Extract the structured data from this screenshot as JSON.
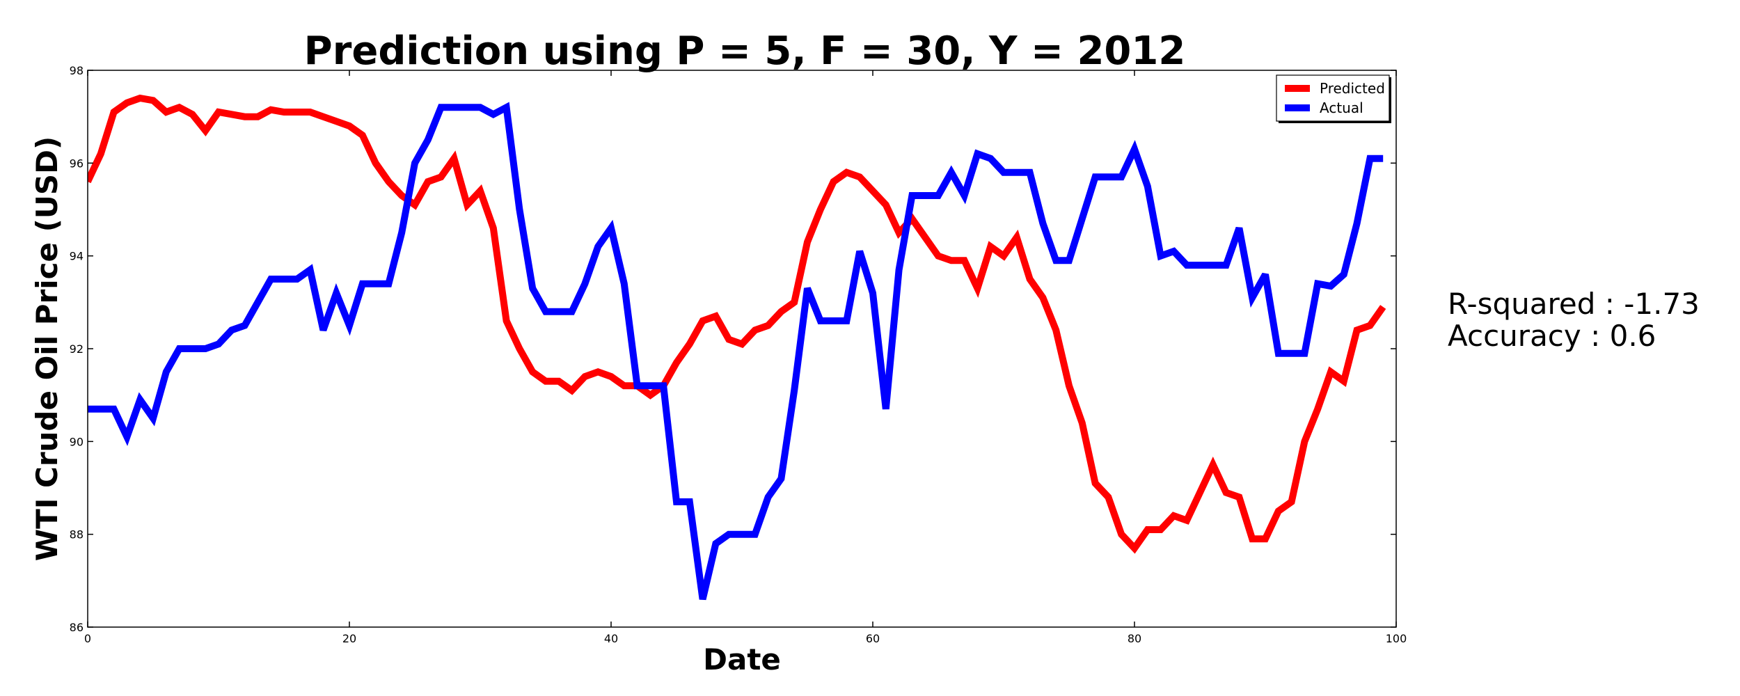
{
  "chart_data": {
    "type": "line",
    "title": "Prediction using P = 5, F = 30, Y = 2012",
    "xlabel": "Date",
    "ylabel": "WTI Crude Oil Price (USD)",
    "xlim": [
      0,
      100
    ],
    "ylim": [
      86,
      98
    ],
    "xticks": [
      0,
      20,
      40,
      60,
      80,
      100
    ],
    "yticks": [
      86,
      88,
      90,
      92,
      94,
      96,
      98
    ],
    "grid": false,
    "legend_position": "top-right",
    "series": [
      {
        "name": "Predicted",
        "color": "#ff0000",
        "values": [
          95.6,
          96.2,
          97.1,
          97.3,
          97.4,
          97.35,
          97.1,
          97.2,
          97.05,
          96.7,
          97.1,
          97.05,
          97.0,
          97.0,
          97.15,
          97.1,
          97.1,
          97.1,
          97.0,
          96.9,
          96.8,
          96.6,
          96.0,
          95.6,
          95.3,
          95.1,
          95.6,
          95.7,
          96.1,
          95.1,
          95.4,
          94.6,
          92.6,
          92.0,
          91.5,
          91.3,
          91.3,
          91.1,
          91.4,
          91.5,
          91.4,
          91.2,
          91.2,
          91.0,
          91.2,
          91.7,
          92.1,
          92.6,
          92.7,
          92.2,
          92.1,
          92.4,
          92.5,
          92.8,
          93.0,
          94.3,
          95.0,
          95.6,
          95.8,
          95.7,
          95.4,
          95.1,
          94.5,
          94.8,
          94.4,
          94.0,
          93.9,
          93.9,
          93.3,
          94.2,
          94.0,
          94.4,
          93.5,
          93.1,
          92.4,
          91.2,
          90.4,
          89.1,
          88.8,
          88.0,
          87.7,
          88.1,
          88.1,
          88.4,
          88.3,
          88.9,
          89.5,
          88.9,
          88.8,
          87.9,
          87.9,
          88.5,
          88.7,
          90.0,
          90.7,
          91.5,
          91.3,
          92.4,
          92.5,
          92.9
        ]
      },
      {
        "name": "Actual",
        "color": "#0000ff",
        "values": [
          90.7,
          90.7,
          90.7,
          90.1,
          90.9,
          90.5,
          91.5,
          92.0,
          92.0,
          92.0,
          92.1,
          92.4,
          92.5,
          93.0,
          93.5,
          93.5,
          93.5,
          93.7,
          92.4,
          93.2,
          92.5,
          93.4,
          93.4,
          93.4,
          94.5,
          96.0,
          96.5,
          97.2,
          97.2,
          97.2,
          97.2,
          97.05,
          97.2,
          95.0,
          93.3,
          92.8,
          92.8,
          92.8,
          93.4,
          94.2,
          94.6,
          93.4,
          91.2,
          91.2,
          91.2,
          88.7,
          88.7,
          86.6,
          87.8,
          88.0,
          88.0,
          88.0,
          88.8,
          89.2,
          91.1,
          93.3,
          92.6,
          92.6,
          92.6,
          94.1,
          93.2,
          90.7,
          93.7,
          95.3,
          95.3,
          95.3,
          95.8,
          95.3,
          96.2,
          96.1,
          95.8,
          95.8,
          95.8,
          94.7,
          93.9,
          93.9,
          94.8,
          95.7,
          95.7,
          95.7,
          96.3,
          95.5,
          94.0,
          94.1,
          93.8,
          93.8,
          93.8,
          93.8,
          94.6,
          93.1,
          93.6,
          91.9,
          91.9,
          91.9,
          93.4,
          93.35,
          93.6,
          94.7,
          96.1,
          96.1
        ]
      }
    ],
    "annotations": [
      "R-squared : -1.73",
      "Accuracy : 0.6"
    ]
  }
}
